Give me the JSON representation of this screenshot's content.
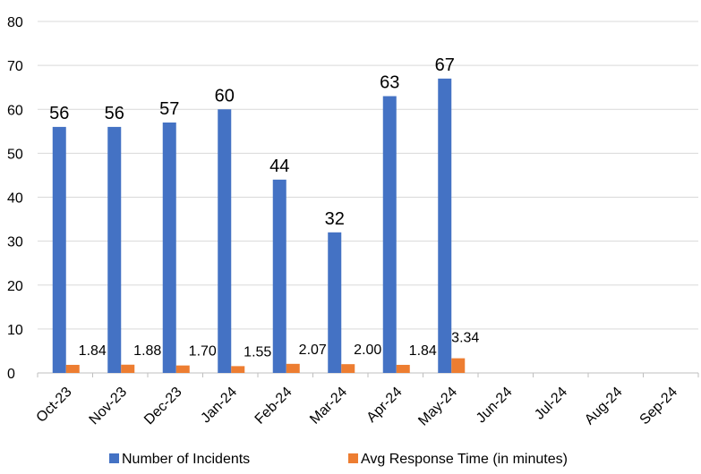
{
  "chart_data": {
    "type": "bar",
    "categories": [
      "Oct-23",
      "Nov-23",
      "Dec-23",
      "Jan-24",
      "Feb-24",
      "Mar-24",
      "Apr-24",
      "May-24",
      "Jun-24",
      "Jul-24",
      "Aug-24",
      "Sep-24"
    ],
    "series": [
      {
        "name": "Number of Incidents",
        "color": "#4472C4",
        "values": [
          56,
          56,
          57,
          60,
          44,
          32,
          63,
          67,
          null,
          null,
          null,
          null
        ],
        "labels": [
          "56",
          "56",
          "57",
          "60",
          "44",
          "32",
          "63",
          "67",
          "",
          "",
          "",
          ""
        ]
      },
      {
        "name": "Avg Response Time (in minutes)",
        "color": "#ED7D31",
        "values": [
          1.84,
          1.88,
          1.7,
          1.55,
          2.07,
          2.0,
          1.84,
          3.34,
          null,
          null,
          null,
          null
        ],
        "labels": [
          "1.84",
          "1.88",
          "1.70",
          "1.55",
          "2.07",
          "2.00",
          "1.84",
          "3.34",
          "",
          "",
          "",
          ""
        ]
      }
    ],
    "y_ticks": [
      "0",
      "10",
      "20",
      "30",
      "40",
      "50",
      "60",
      "70",
      "80"
    ],
    "ylim": [
      0,
      80
    ],
    "grid": true,
    "legend_position": "bottom",
    "xlabel": "",
    "ylabel": ""
  }
}
